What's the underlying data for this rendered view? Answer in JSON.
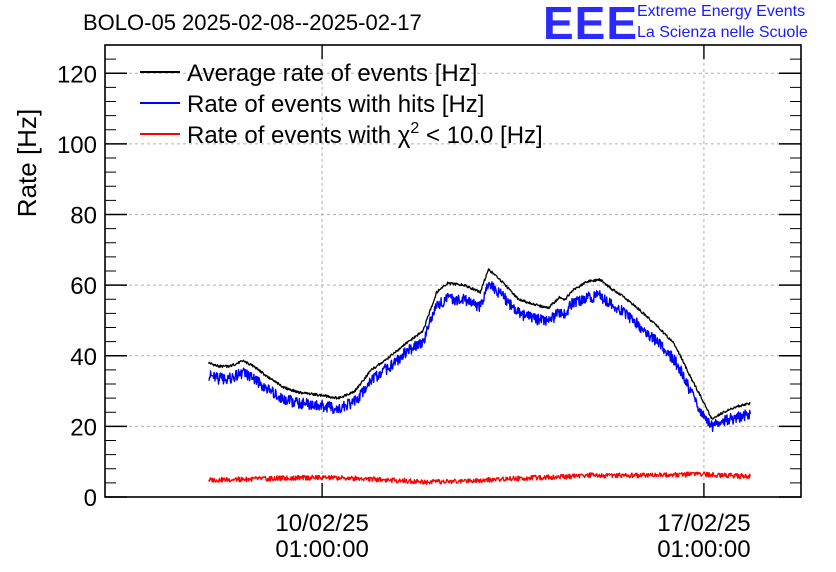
{
  "chart_data": {
    "type": "line",
    "title": "BOLO-05 2025-02-08--2025-02-17",
    "ylabel": "Rate [Hz]",
    "xlabel": "",
    "ylim": [
      0,
      128
    ],
    "yticks": [
      0,
      20,
      40,
      60,
      80,
      100,
      120
    ],
    "grid": true,
    "legend_position": "top-left",
    "xticks": [
      {
        "date": "10/02/25",
        "time": "01:00:00",
        "day": 1.0
      },
      {
        "date": "17/02/25",
        "time": "01:00:00",
        "day": 8.0
      }
    ],
    "xlim_days": [
      -2.98,
      9.78
    ],
    "legend": [
      {
        "name": "Average rate of events [Hz]",
        "color": "#000000"
      },
      {
        "name": "Rate of events with hits [Hz]",
        "color": "#0000ff"
      },
      {
        "name": "Rate of events with χ² < 10.0 [Hz]",
        "color": "#ff0000",
        "prefix": "Rate of events with ",
        "chi": "χ",
        "sup": "2",
        "suffix": " < 10.0 [Hz]"
      }
    ],
    "series": [
      {
        "name": "Average rate of events [Hz]",
        "color": "#000000",
        "x_days": [
          -1.08,
          -0.9,
          -0.7,
          -0.45,
          -0.25,
          0.0,
          0.3,
          0.6,
          0.9,
          1.1,
          1.3,
          1.6,
          1.9,
          2.1,
          2.3,
          2.5,
          2.85,
          3.1,
          3.3,
          3.6,
          3.9,
          4.05,
          4.3,
          4.6,
          4.9,
          5.15,
          5.35,
          5.45,
          5.6,
          5.85,
          6.1,
          6.3,
          6.5,
          6.75,
          7.1,
          7.45,
          7.6,
          7.75,
          7.96,
          8.15,
          8.35,
          8.6,
          8.8,
          8.85
        ],
        "values": [
          38,
          37,
          37,
          38.5,
          37,
          34,
          31,
          29.5,
          29,
          28.5,
          28,
          30,
          36,
          38,
          40.5,
          43,
          47,
          58,
          60.5,
          60,
          58,
          64.5,
          61,
          56,
          54.5,
          53.5,
          56.5,
          56,
          58.5,
          61,
          61.5,
          59,
          57,
          54,
          49,
          43.5,
          39,
          34,
          28,
          22,
          24,
          25.5,
          26.5,
          26.5
        ]
      },
      {
        "name": "Rate of events with hits [Hz]",
        "color": "#0000ff",
        "x_days": [
          -1.08,
          -0.9,
          -0.7,
          -0.45,
          -0.25,
          0.0,
          0.3,
          0.6,
          0.9,
          1.1,
          1.3,
          1.6,
          1.9,
          2.1,
          2.3,
          2.5,
          2.85,
          3.1,
          3.3,
          3.6,
          3.9,
          4.05,
          4.3,
          4.6,
          4.9,
          5.15,
          5.35,
          5.45,
          5.6,
          5.85,
          6.1,
          6.3,
          6.5,
          6.75,
          7.1,
          7.45,
          7.6,
          7.75,
          7.96,
          8.15,
          8.35,
          8.6,
          8.8,
          8.85
        ],
        "values": [
          34.5,
          33.5,
          33.5,
          35,
          33.5,
          30.5,
          27.5,
          26.5,
          26,
          25.5,
          25,
          27,
          33,
          35.5,
          37.5,
          40.5,
          44,
          54.5,
          56,
          56,
          54,
          60.5,
          57,
          52,
          50.5,
          49.5,
          52.5,
          52,
          55,
          56.5,
          57,
          54.5,
          52.5,
          49.5,
          44.5,
          39,
          35,
          30,
          24,
          20,
          21.5,
          22.5,
          23.5,
          23.5
        ]
      },
      {
        "name": "Rate of events with χ² < 10.0 [Hz]",
        "color": "#ff0000",
        "x_days": [
          -1.08,
          -0.5,
          0.0,
          0.5,
          1.0,
          1.5,
          2.0,
          2.5,
          3.0,
          3.5,
          4.0,
          4.5,
          5.0,
          5.5,
          5.9,
          6.1,
          6.5,
          7.0,
          7.5,
          7.96,
          8.3,
          8.85
        ],
        "values": [
          4.8,
          5.0,
          5.2,
          5.4,
          5.5,
          5.3,
          5.0,
          4.6,
          4.2,
          4.5,
          4.8,
          5.2,
          5.5,
          5.8,
          6.2,
          6.0,
          6.1,
          6.2,
          6.3,
          6.4,
          6.2,
          5.8
        ]
      }
    ]
  },
  "branding": {
    "logo_text": "EEE",
    "line1": "Extreme Energy Events",
    "line2": "La Scienza nelle Scuole",
    "color": "#1a1aff"
  }
}
